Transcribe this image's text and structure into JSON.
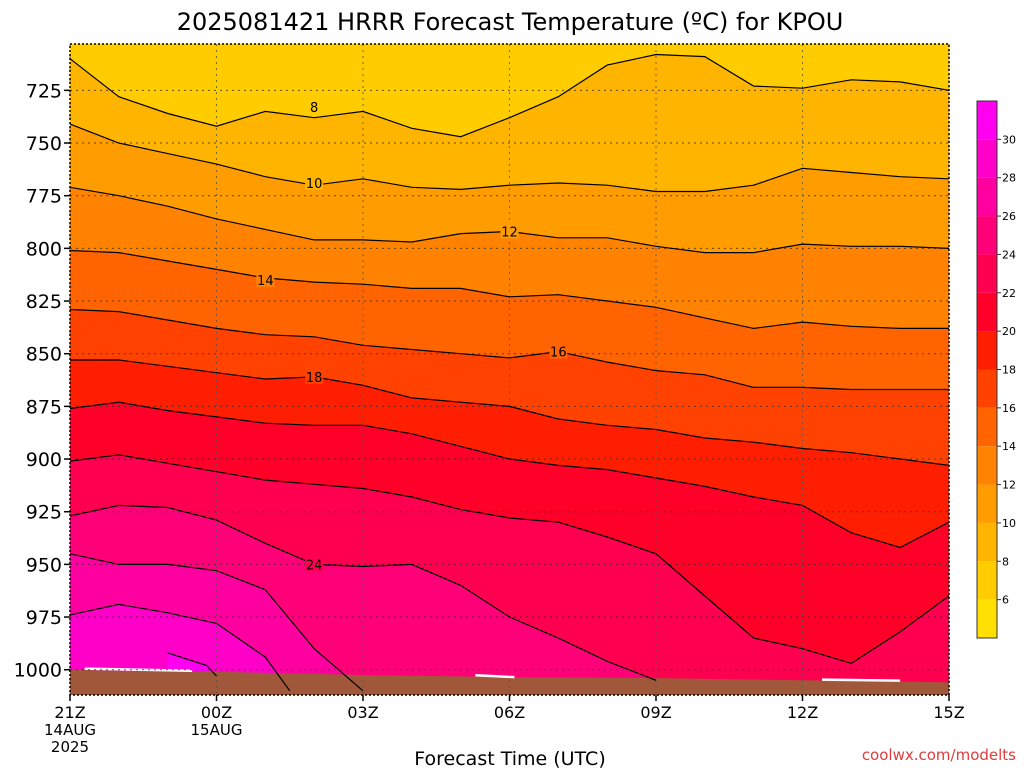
{
  "chart_data": {
    "type": "contour",
    "title": "2025081421 HRRR Forecast Temperature (ºC) for KPOU",
    "xlabel": "Forecast Time (UTC)",
    "ylabel": "",
    "credit": "coolwx.com/modelts",
    "x_ticks": [
      {
        "hour": 0,
        "lines": [
          "21Z",
          "14AUG",
          "2025"
        ]
      },
      {
        "hour": 3,
        "lines": [
          "00Z",
          "15AUG"
        ]
      },
      {
        "hour": 6,
        "lines": [
          "03Z"
        ]
      },
      {
        "hour": 9,
        "lines": [
          "06Z"
        ]
      },
      {
        "hour": 12,
        "lines": [
          "09Z"
        ]
      },
      {
        "hour": 15,
        "lines": [
          "12Z"
        ]
      },
      {
        "hour": 18,
        "lines": [
          "15Z"
        ]
      }
    ],
    "xlim": [
      0,
      18
    ],
    "y_ticks": [
      725,
      750,
      775,
      800,
      825,
      850,
      875,
      900,
      925,
      950,
      975,
      1000
    ],
    "ylim": [
      1012,
      703
    ],
    "ground_color": "#a0573a",
    "grid": true,
    "colorbar": {
      "min": 4,
      "max": 32,
      "tick_labels": [
        6,
        8,
        10,
        12,
        14,
        16,
        18,
        20,
        22,
        24,
        26,
        28,
        30
      ],
      "bands": [
        {
          "lo": 4,
          "hi": 6,
          "color": "#ffe000"
        },
        {
          "lo": 6,
          "hi": 8,
          "color": "#ffcc00"
        },
        {
          "lo": 8,
          "hi": 10,
          "color": "#ffb400"
        },
        {
          "lo": 10,
          "hi": 12,
          "color": "#ff9c00"
        },
        {
          "lo": 12,
          "hi": 14,
          "color": "#ff8200"
        },
        {
          "lo": 14,
          "hi": 16,
          "color": "#ff6400"
        },
        {
          "lo": 16,
          "hi": 18,
          "color": "#ff4200"
        },
        {
          "lo": 18,
          "hi": 20,
          "color": "#ff1e00"
        },
        {
          "lo": 20,
          "hi": 22,
          "color": "#ff0028"
        },
        {
          "lo": 22,
          "hi": 24,
          "color": "#ff0050"
        },
        {
          "lo": 24,
          "hi": 26,
          "color": "#ff0078"
        },
        {
          "lo": 26,
          "hi": 28,
          "color": "#ff00a0"
        },
        {
          "lo": 28,
          "hi": 30,
          "color": "#ff00c8"
        },
        {
          "lo": 30,
          "hi": 32,
          "color": "#ff00f0"
        }
      ]
    },
    "contours": [
      {
        "value": 8,
        "label": "8",
        "label_at": [
          5,
          733
        ],
        "points": [
          [
            0,
            710
          ],
          [
            1,
            728
          ],
          [
            2,
            736
          ],
          [
            3,
            742
          ],
          [
            4,
            735
          ],
          [
            5,
            738
          ],
          [
            6,
            735
          ],
          [
            7,
            743
          ],
          [
            8,
            747
          ],
          [
            9,
            738
          ],
          [
            10,
            728
          ],
          [
            11,
            713
          ],
          [
            12,
            708
          ],
          [
            13,
            709
          ],
          [
            14,
            723
          ],
          [
            15,
            724
          ],
          [
            16,
            720
          ],
          [
            17,
            721
          ],
          [
            18,
            725
          ]
        ]
      },
      {
        "value": 10,
        "label": "10",
        "label_at": [
          5,
          769
        ],
        "points": [
          [
            0,
            741
          ],
          [
            1,
            750
          ],
          [
            2,
            755
          ],
          [
            3,
            760
          ],
          [
            4,
            766
          ],
          [
            5,
            770
          ],
          [
            6,
            767
          ],
          [
            7,
            771
          ],
          [
            8,
            772
          ],
          [
            9,
            770
          ],
          [
            10,
            769
          ],
          [
            11,
            770
          ],
          [
            12,
            773
          ],
          [
            13,
            773
          ],
          [
            14,
            770
          ],
          [
            15,
            762
          ],
          [
            16,
            764
          ],
          [
            17,
            766
          ],
          [
            18,
            767
          ]
        ]
      },
      {
        "value": 12,
        "label": "12",
        "label_at": [
          9,
          792
        ],
        "points": [
          [
            0,
            771
          ],
          [
            1,
            775
          ],
          [
            2,
            780
          ],
          [
            3,
            786
          ],
          [
            4,
            791
          ],
          [
            5,
            796
          ],
          [
            6,
            796
          ],
          [
            7,
            797
          ],
          [
            8,
            793
          ],
          [
            9,
            792
          ],
          [
            10,
            795
          ],
          [
            11,
            795
          ],
          [
            12,
            799
          ],
          [
            13,
            802
          ],
          [
            14,
            802
          ],
          [
            15,
            798
          ],
          [
            16,
            799
          ],
          [
            17,
            799
          ],
          [
            18,
            800
          ]
        ]
      },
      {
        "value": 14,
        "label": "14",
        "label_at": [
          4,
          815
        ],
        "points": [
          [
            0,
            801
          ],
          [
            1,
            802
          ],
          [
            2,
            806
          ],
          [
            3,
            810
          ],
          [
            4,
            814
          ],
          [
            5,
            816
          ],
          [
            6,
            817
          ],
          [
            7,
            819
          ],
          [
            8,
            819
          ],
          [
            9,
            823
          ],
          [
            10,
            822
          ],
          [
            11,
            825
          ],
          [
            12,
            828
          ],
          [
            13,
            833
          ],
          [
            14,
            838
          ],
          [
            15,
            835
          ],
          [
            16,
            837
          ],
          [
            17,
            838
          ],
          [
            18,
            838
          ]
        ]
      },
      {
        "value": 16,
        "label": "16",
        "label_at": [
          10,
          849
        ],
        "points": [
          [
            0,
            829
          ],
          [
            1,
            830
          ],
          [
            2,
            834
          ],
          [
            3,
            838
          ],
          [
            4,
            841
          ],
          [
            5,
            842
          ],
          [
            6,
            846
          ],
          [
            7,
            848
          ],
          [
            8,
            850
          ],
          [
            9,
            852
          ],
          [
            10,
            849
          ],
          [
            11,
            854
          ],
          [
            12,
            858
          ],
          [
            13,
            860
          ],
          [
            14,
            866
          ],
          [
            15,
            866
          ],
          [
            16,
            867
          ],
          [
            17,
            867
          ],
          [
            18,
            867
          ]
        ]
      },
      {
        "value": 18,
        "label": "18",
        "label_at": [
          5,
          861
        ],
        "points": [
          [
            0,
            853
          ],
          [
            1,
            853
          ],
          [
            2,
            856
          ],
          [
            3,
            859
          ],
          [
            4,
            862
          ],
          [
            5,
            861
          ],
          [
            6,
            865
          ],
          [
            7,
            871
          ],
          [
            8,
            873
          ],
          [
            9,
            875
          ],
          [
            10,
            881
          ],
          [
            11,
            884
          ],
          [
            12,
            886
          ],
          [
            13,
            890
          ],
          [
            14,
            892
          ],
          [
            15,
            895
          ],
          [
            16,
            897
          ],
          [
            17,
            900
          ],
          [
            18,
            903
          ]
        ]
      },
      {
        "value": 20,
        "label": "",
        "points": [
          [
            0,
            876
          ],
          [
            1,
            873
          ],
          [
            2,
            877
          ],
          [
            3,
            880
          ],
          [
            4,
            883
          ],
          [
            5,
            884
          ],
          [
            6,
            884
          ],
          [
            7,
            888
          ],
          [
            8,
            894
          ],
          [
            9,
            900
          ],
          [
            10,
            903
          ],
          [
            11,
            905
          ],
          [
            12,
            909
          ],
          [
            13,
            913
          ],
          [
            14,
            918
          ],
          [
            15,
            922
          ],
          [
            16,
            935
          ],
          [
            17,
            942
          ],
          [
            18,
            930
          ]
        ]
      },
      {
        "value": 22,
        "label": "",
        "points": [
          [
            0,
            901
          ],
          [
            1,
            898
          ],
          [
            2,
            902
          ],
          [
            3,
            906
          ],
          [
            4,
            910
          ],
          [
            5,
            912
          ],
          [
            6,
            914
          ],
          [
            7,
            918
          ],
          [
            8,
            924
          ],
          [
            9,
            928
          ],
          [
            10,
            930
          ],
          [
            11,
            937
          ],
          [
            12,
            945
          ],
          [
            13,
            965
          ],
          [
            14,
            985
          ],
          [
            15,
            990
          ],
          [
            16,
            997
          ],
          [
            17,
            982
          ],
          [
            18,
            965
          ]
        ]
      },
      {
        "value": 24,
        "label": "24",
        "label_at": [
          5,
          950
        ],
        "points": [
          [
            0,
            927
          ],
          [
            1,
            922
          ],
          [
            2,
            923
          ],
          [
            3,
            929
          ],
          [
            4,
            940
          ],
          [
            5,
            950
          ],
          [
            6,
            951
          ],
          [
            7,
            950
          ],
          [
            8,
            960
          ],
          [
            9,
            975
          ],
          [
            10,
            985
          ],
          [
            11,
            996
          ],
          [
            12,
            1005
          ]
        ]
      },
      {
        "value": 26,
        "label": "",
        "points": [
          [
            0,
            945
          ],
          [
            1,
            950
          ],
          [
            2,
            950
          ],
          [
            3,
            953
          ],
          [
            4,
            962
          ],
          [
            5,
            990
          ],
          [
            6,
            1010
          ]
        ]
      },
      {
        "value": 28,
        "label": "",
        "points": [
          [
            0,
            974
          ],
          [
            1,
            969
          ],
          [
            2,
            973
          ],
          [
            3,
            978
          ],
          [
            4,
            994
          ],
          [
            4.5,
            1010
          ]
        ]
      },
      {
        "value": 30,
        "label": "",
        "points": [
          [
            2,
            992
          ],
          [
            2.8,
            998
          ],
          [
            3,
            1003
          ]
        ]
      }
    ]
  }
}
